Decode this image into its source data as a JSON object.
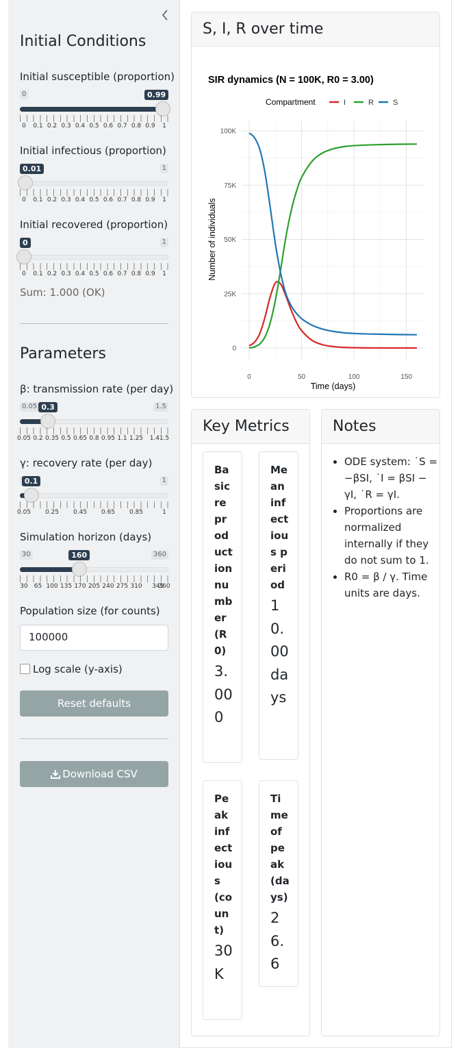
{
  "sidebar": {
    "collapse_icon": "chevron-left",
    "initial_conditions_title": "Initial Conditions",
    "susceptible": {
      "label": "Initial susceptible (proportion)",
      "min": "0",
      "max": "1",
      "value": "0.99",
      "fraction": 0.99,
      "ticks": [
        "0",
        "0.1",
        "0.2",
        "0.3",
        "0.4",
        "0.5",
        "0.6",
        "0.7",
        "0.8",
        "0.9",
        "1"
      ]
    },
    "infectious": {
      "label": "Initial infectious (proportion)",
      "min": "0",
      "max": "1",
      "value": "0.01",
      "fraction": 0.01,
      "ticks": [
        "0",
        "0.1",
        "0.2",
        "0.3",
        "0.4",
        "0.5",
        "0.6",
        "0.7",
        "0.8",
        "0.9",
        "1"
      ]
    },
    "recovered": {
      "label": "Initial recovered (proportion)",
      "min": "0",
      "max": "1",
      "value": "0",
      "fraction": 0.0,
      "ticks": [
        "0",
        "0.1",
        "0.2",
        "0.3",
        "0.4",
        "0.5",
        "0.6",
        "0.7",
        "0.8",
        "0.9",
        "1"
      ]
    },
    "sum_text": "Sum: 1.000 (OK)",
    "parameters_title": "Parameters",
    "beta": {
      "label": "β: transmission rate (per day)",
      "min": "0.05",
      "max": "1.5",
      "value": "0.3",
      "fraction": 0.1724,
      "ticks": [
        "0.05",
        "0.2",
        "0.35",
        "0.5",
        "0.65",
        "0.8",
        "0.95",
        "1.1",
        "1.25",
        "1.4",
        "1.5"
      ]
    },
    "gamma": {
      "label": "γ: recovery rate (per day)",
      "min": "0.05",
      "max": "1",
      "value": "0.1",
      "fraction": 0.0526,
      "ticks": [
        "0.05",
        "0.25",
        "0.45",
        "0.65",
        "0.85",
        "1"
      ]
    },
    "horizon": {
      "label": "Simulation horizon (days)",
      "min": "30",
      "max": "360",
      "value": "160",
      "fraction": 0.3939,
      "ticks": [
        "30",
        "65",
        "100",
        "135",
        "170",
        "205",
        "240",
        "275",
        "310",
        "345",
        "360"
      ]
    },
    "population_label": "Population size (for counts)",
    "population_value": "100000",
    "log_scale_label": "Log scale (y-axis)",
    "log_scale_checked": false,
    "reset_label": "Reset defaults",
    "download_label": "Download CSV",
    "download_icon": "download-icon",
    "button_color": "#95a5a6"
  },
  "main": {
    "plot_card_title": "S, I, R over time",
    "key_metrics_title": "Key Metrics",
    "notes_title": "Notes",
    "metrics": [
      {
        "title": "Basic reproduction number (R0)",
        "value": "3.000"
      },
      {
        "title": "Mean infectious period",
        "value": "10.00 days"
      },
      {
        "title": "Peak infectious (count)",
        "value": "30K"
      },
      {
        "title": "Time of peak (days)",
        "value": "26.6"
      }
    ],
    "notes": [
      "ODE system: ˙S = −βSI,  ˙I = βSI − γI,  ˙R = γI.",
      "Proportions are normalized internally if they do not sum to 1.",
      "R0 = β / γ. Time units are days."
    ]
  },
  "chart_data": {
    "type": "line",
    "title": "SIR dynamics (N = 100K, R0 = 3.00)",
    "xlabel": "Time (days)",
    "ylabel": "Number of individuals",
    "legend_title": "Compartment",
    "legend_placement": "top",
    "xlim": [
      0,
      160
    ],
    "ylim": [
      0,
      100000
    ],
    "xticks": [
      "0",
      "50",
      "100",
      "150"
    ],
    "yticks": [
      "0",
      "25K",
      "50K",
      "75K",
      "100K"
    ],
    "grid": true,
    "x": [
      0,
      5,
      10,
      15,
      20,
      25,
      30,
      35,
      40,
      45,
      50,
      60,
      70,
      80,
      90,
      100,
      120,
      140,
      160
    ],
    "series": [
      {
        "name": "I",
        "color": "#d62728",
        "values": [
          1000,
          2600,
          6500,
          14000,
          23500,
          30000,
          29500,
          24000,
          17500,
          12000,
          8000,
          3500,
          1500,
          650,
          280,
          120,
          20,
          5,
          0
        ]
      },
      {
        "name": "R",
        "color": "#2ca02c",
        "values": [
          0,
          500,
          1800,
          5000,
          11500,
          22000,
          36000,
          51000,
          63000,
          72000,
          78500,
          86000,
          89800,
          91700,
          92700,
          93200,
          93600,
          93800,
          93900
        ]
      },
      {
        "name": "S",
        "color": "#1f77b4",
        "values": [
          99000,
          96900,
          91700,
          81000,
          65000,
          48000,
          34500,
          25000,
          19500,
          16000,
          13500,
          10500,
          8700,
          7650,
          7020,
          6680,
          6380,
          6200,
          6100
        ]
      }
    ]
  }
}
